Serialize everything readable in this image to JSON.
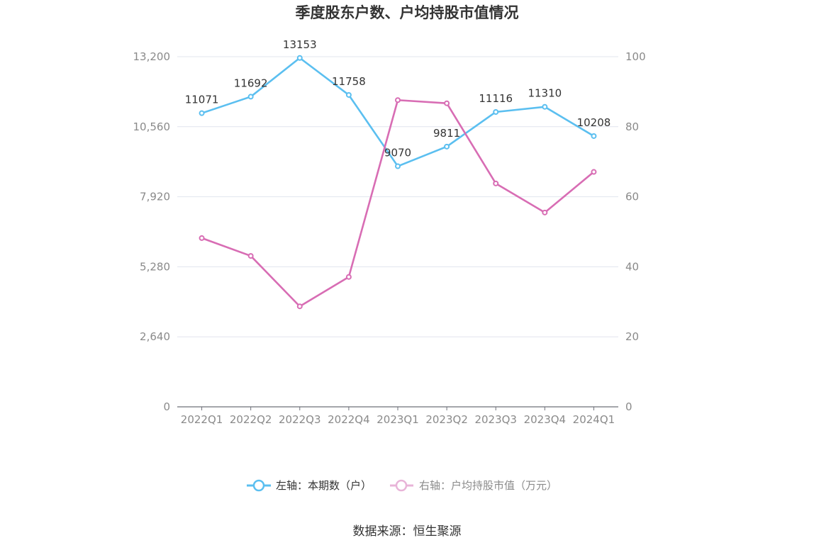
{
  "chart_data": {
    "type": "line",
    "title": "季度股东户数、户均持股市值情况",
    "categories": [
      "2022Q1",
      "2022Q2",
      "2022Q3",
      "2022Q4",
      "2023Q1",
      "2023Q2",
      "2023Q3",
      "2023Q4",
      "2024Q1"
    ],
    "left_axis": {
      "ticks": [
        "0",
        "2,640",
        "5,280",
        "7,920",
        "10,560",
        "13,200"
      ],
      "ylim": [
        0,
        13200
      ]
    },
    "right_axis": {
      "ticks": [
        "0",
        "20",
        "40",
        "60",
        "80",
        "100"
      ],
      "ylim": [
        0,
        100
      ]
    },
    "series": [
      {
        "name": "左轴：本期数（户）",
        "axis": "left",
        "color": "#5bbff0",
        "values": [
          11071,
          11692,
          13153,
          11758,
          9070,
          9811,
          11116,
          11310,
          10208
        ],
        "labels": [
          "11071",
          "11692",
          "13153",
          "11758",
          "9070",
          "9811",
          "11116",
          "11310",
          "10208"
        ]
      },
      {
        "name": "右轴：户均持股市值（万元）",
        "axis": "right",
        "color": "#d86db4",
        "legend_color": "#e8b4d8",
        "values": [
          48.2,
          43.1,
          28.7,
          37.1,
          87.6,
          86.7,
          63.8,
          55.5,
          67.1
        ]
      }
    ],
    "grid": true,
    "legend_position": "bottom-center"
  },
  "source_text": "数据来源：恒生聚源"
}
